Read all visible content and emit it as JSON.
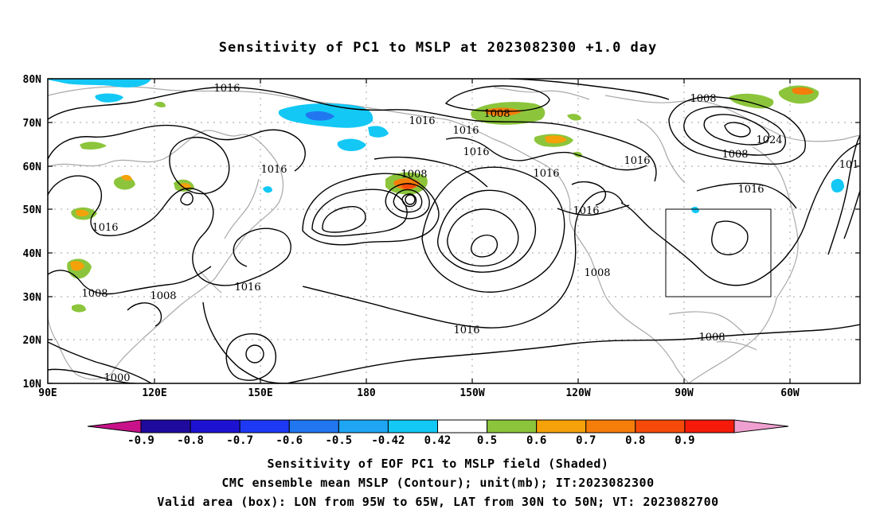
{
  "title": "Sensitivity of PC1 to MSLP at 2023082300 +1.0 day",
  "axes": {
    "y_ticks": [
      "80N",
      "70N",
      "60N",
      "50N",
      "40N",
      "30N",
      "20N",
      "10N"
    ],
    "x_ticks": [
      "90E",
      "120E",
      "150E",
      "180",
      "150W",
      "120W",
      "90W",
      "60W"
    ]
  },
  "contour_labels": [
    "1016",
    "1016",
    "1016",
    "1016",
    "1016",
    "1016",
    "1016",
    "1016",
    "1016",
    "1016",
    "1016",
    "1016",
    "101",
    "1008",
    "1008",
    "1008",
    "1008",
    "1008",
    "1008",
    "1008",
    "1008",
    "1000",
    "1024"
  ],
  "colorbar": {
    "colors": [
      "#c8128a",
      "#1f0a9e",
      "#1e12d2",
      "#1d39f5",
      "#2177f0",
      "#1ea6f5",
      "#13c8f5",
      "#ffffff",
      "#8cc53b",
      "#f5a10a",
      "#f57d0a",
      "#f54a0a",
      "#f51a0a",
      "#f0a0d0"
    ],
    "labels": [
      "-0.9",
      "-0.8",
      "-0.7",
      "-0.6",
      "-0.5",
      "-0.42",
      "0.42",
      "0.5",
      "0.6",
      "0.7",
      "0.8",
      "0.9"
    ]
  },
  "caption_lines": [
    "Sensitivity of EOF PC1 to MSLP field (Shaded)",
    "CMC ensemble mean MSLP (Contour); unit(mb); IT:2023082300",
    "Valid area (box): LON from 95W to 65W, LAT from 30N to 50N; VT: 2023082700"
  ]
}
